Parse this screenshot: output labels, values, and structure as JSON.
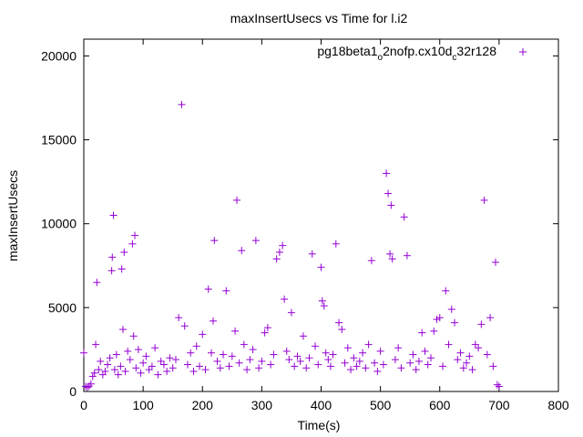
{
  "chart_data": {
    "type": "scatter",
    "title": "maxInsertUsecs vs Time for l.i2",
    "xlabel": "Time(s)",
    "ylabel": "maxInsertUsecs",
    "xlim": [
      0,
      800
    ],
    "ylim": [
      0,
      21000
    ],
    "xticks": [
      0,
      100,
      200,
      300,
      400,
      500,
      600,
      700,
      800
    ],
    "yticks": [
      0,
      5000,
      10000,
      15000,
      20000
    ],
    "grid": false,
    "legend_position": "top-right",
    "legend": {
      "base": "pg18beta1",
      "sub1": "o",
      "mid": "2nofp.cx10d",
      "sub2": "c",
      "tail": "32r128"
    },
    "series": [
      {
        "name": "pg18beta1_o2nofp.cx10d_c32r128",
        "color": "#9400d3",
        "marker": "plus",
        "points": [
          [
            0,
            2300
          ],
          [
            3,
            300
          ],
          [
            6,
            250
          ],
          [
            9,
            320
          ],
          [
            12,
            450
          ],
          [
            15,
            900
          ],
          [
            18,
            1100
          ],
          [
            20,
            2800
          ],
          [
            22,
            6500
          ],
          [
            25,
            1300
          ],
          [
            28,
            1800
          ],
          [
            32,
            1000
          ],
          [
            36,
            1200
          ],
          [
            40,
            1600
          ],
          [
            44,
            2000
          ],
          [
            47,
            7200
          ],
          [
            48,
            8000
          ],
          [
            50,
            10500
          ],
          [
            52,
            1300
          ],
          [
            55,
            2200
          ],
          [
            58,
            1000
          ],
          [
            62,
            1500
          ],
          [
            64,
            7300
          ],
          [
            66,
            3700
          ],
          [
            68,
            8300
          ],
          [
            70,
            1200
          ],
          [
            74,
            2400
          ],
          [
            78,
            1900
          ],
          [
            82,
            8800
          ],
          [
            84,
            3300
          ],
          [
            86,
            9300
          ],
          [
            88,
            1400
          ],
          [
            92,
            2500
          ],
          [
            96,
            1100
          ],
          [
            100,
            1700
          ],
          [
            105,
            2100
          ],
          [
            110,
            1300
          ],
          [
            115,
            1500
          ],
          [
            120,
            2600
          ],
          [
            125,
            1000
          ],
          [
            130,
            1800
          ],
          [
            135,
            1600
          ],
          [
            140,
            1200
          ],
          [
            145,
            2000
          ],
          [
            150,
            1400
          ],
          [
            155,
            1900
          ],
          [
            160,
            4400
          ],
          [
            165,
            17100
          ],
          [
            170,
            3900
          ],
          [
            175,
            1600
          ],
          [
            180,
            2300
          ],
          [
            185,
            1200
          ],
          [
            190,
            2700
          ],
          [
            195,
            1500
          ],
          [
            200,
            3400
          ],
          [
            205,
            1300
          ],
          [
            210,
            6100
          ],
          [
            215,
            2300
          ],
          [
            218,
            4200
          ],
          [
            220,
            9000
          ],
          [
            225,
            1800
          ],
          [
            230,
            1400
          ],
          [
            235,
            2200
          ],
          [
            240,
            6000
          ],
          [
            245,
            1500
          ],
          [
            250,
            2100
          ],
          [
            255,
            3600
          ],
          [
            258,
            11400
          ],
          [
            262,
            1700
          ],
          [
            266,
            8400
          ],
          [
            270,
            2800
          ],
          [
            275,
            1300
          ],
          [
            280,
            1900
          ],
          [
            285,
            2500
          ],
          [
            290,
            9000
          ],
          [
            295,
            1400
          ],
          [
            300,
            1800
          ],
          [
            305,
            3500
          ],
          [
            310,
            3800
          ],
          [
            315,
            1600
          ],
          [
            320,
            2200
          ],
          [
            325,
            7900
          ],
          [
            330,
            8300
          ],
          [
            335,
            8700
          ],
          [
            338,
            5500
          ],
          [
            342,
            2400
          ],
          [
            346,
            1900
          ],
          [
            350,
            4700
          ],
          [
            355,
            1500
          ],
          [
            360,
            2100
          ],
          [
            365,
            1800
          ],
          [
            370,
            3300
          ],
          [
            375,
            1400
          ],
          [
            380,
            2000
          ],
          [
            385,
            8200
          ],
          [
            390,
            2700
          ],
          [
            395,
            1600
          ],
          [
            400,
            7400
          ],
          [
            402,
            5400
          ],
          [
            405,
            5100
          ],
          [
            408,
            2300
          ],
          [
            412,
            1900
          ],
          [
            416,
            1500
          ],
          [
            420,
            2200
          ],
          [
            425,
            8800
          ],
          [
            430,
            4100
          ],
          [
            435,
            3700
          ],
          [
            440,
            1700
          ],
          [
            445,
            2600
          ],
          [
            450,
            1300
          ],
          [
            455,
            2000
          ],
          [
            460,
            1500
          ],
          [
            465,
            1800
          ],
          [
            470,
            2300
          ],
          [
            475,
            1400
          ],
          [
            480,
            2800
          ],
          [
            485,
            7800
          ],
          [
            490,
            1700
          ],
          [
            495,
            1200
          ],
          [
            500,
            2400
          ],
          [
            505,
            1600
          ],
          [
            510,
            13000
          ],
          [
            513,
            11800
          ],
          [
            516,
            8200
          ],
          [
            518,
            11100
          ],
          [
            520,
            7900
          ],
          [
            525,
            1900
          ],
          [
            530,
            2600
          ],
          [
            535,
            1400
          ],
          [
            540,
            10400
          ],
          [
            545,
            8100
          ],
          [
            550,
            1700
          ],
          [
            555,
            2200
          ],
          [
            560,
            1300
          ],
          [
            565,
            1800
          ],
          [
            570,
            3500
          ],
          [
            575,
            2400
          ],
          [
            580,
            1600
          ],
          [
            585,
            2000
          ],
          [
            590,
            3600
          ],
          [
            595,
            4300
          ],
          [
            600,
            4400
          ],
          [
            605,
            1500
          ],
          [
            610,
            6000
          ],
          [
            615,
            2800
          ],
          [
            620,
            4900
          ],
          [
            625,
            4100
          ],
          [
            630,
            1900
          ],
          [
            635,
            2300
          ],
          [
            640,
            1400
          ],
          [
            645,
            1700
          ],
          [
            650,
            2100
          ],
          [
            655,
            1300
          ],
          [
            660,
            2800
          ],
          [
            665,
            2600
          ],
          [
            670,
            4000
          ],
          [
            675,
            11400
          ],
          [
            680,
            2200
          ],
          [
            685,
            4400
          ],
          [
            690,
            1500
          ],
          [
            694,
            7700
          ],
          [
            697,
            400
          ],
          [
            700,
            300
          ]
        ]
      }
    ]
  }
}
